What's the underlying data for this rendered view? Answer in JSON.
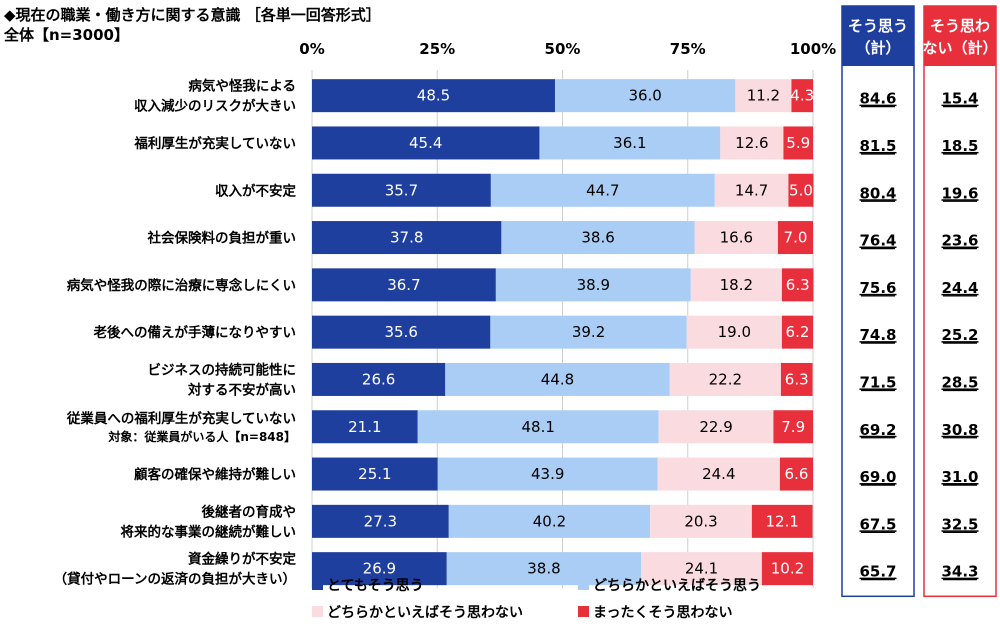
{
  "title_line1": "◆現在の職業・働き方に関する意識 ［各単一回答形式］",
  "title_line2": "全体【n=3000】",
  "summary_headers": [
    {
      "line1": "そう思う",
      "line2": "（計）",
      "color": "#1f3f9f"
    },
    {
      "line1": "そう思わ",
      "line2": "ない（計）",
      "color": "#e8303c"
    }
  ],
  "chart_data": {
    "type": "bar",
    "orientation": "horizontal",
    "stacked": true,
    "xlim": [
      0,
      100
    ],
    "xticks": [
      "0%",
      "25%",
      "50%",
      "75%",
      "100%"
    ],
    "series": [
      {
        "name": "とてもそう思う",
        "color": "#1f3f9f",
        "label_color": "#ffffff"
      },
      {
        "name": "どちらかといえばそう思う",
        "color": "#a9cdf5",
        "label_color": "#000000"
      },
      {
        "name": "どちらかといえばそう思わない",
        "color": "#fadbe0",
        "label_color": "#000000"
      },
      {
        "name": "まったくそう思わない",
        "color": "#e8303c",
        "label_color": "#ffffff"
      }
    ],
    "categories": [
      {
        "lines": [
          "病気や怪我による",
          "収入減少のリスクが大きい"
        ],
        "values": [
          48.5,
          36.0,
          11.2,
          4.3
        ],
        "agree_total": "84.6",
        "disagree_total": "15.4"
      },
      {
        "lines": [
          "福利厚生が充実していない"
        ],
        "values": [
          45.4,
          36.1,
          12.6,
          5.9
        ],
        "agree_total": "81.5",
        "disagree_total": "18.5"
      },
      {
        "lines": [
          "収入が不安定"
        ],
        "values": [
          35.7,
          44.7,
          14.7,
          5.0
        ],
        "agree_total": "80.4",
        "disagree_total": "19.6"
      },
      {
        "lines": [
          "社会保険料の負担が重い"
        ],
        "values": [
          37.8,
          38.6,
          16.6,
          7.0
        ],
        "agree_total": "76.4",
        "disagree_total": "23.6"
      },
      {
        "lines": [
          "病気や怪我の際に治療に専念しにくい"
        ],
        "values": [
          36.7,
          38.9,
          18.2,
          6.3
        ],
        "agree_total": "75.6",
        "disagree_total": "24.4"
      },
      {
        "lines": [
          "老後への備えが手薄になりやすい"
        ],
        "values": [
          35.6,
          39.2,
          19.0,
          6.2
        ],
        "agree_total": "74.8",
        "disagree_total": "25.2"
      },
      {
        "lines": [
          "ビジネスの持続可能性に",
          "対する不安が高い"
        ],
        "values": [
          26.6,
          44.8,
          22.2,
          6.3
        ],
        "agree_total": "71.5",
        "disagree_total": "28.5"
      },
      {
        "lines": [
          "従業員への福利厚生が充実していない"
        ],
        "note": "対象：従業員がいる人【n=848】",
        "values": [
          21.1,
          48.1,
          22.9,
          7.9
        ],
        "agree_total": "69.2",
        "disagree_total": "30.8"
      },
      {
        "lines": [
          "顧客の確保や維持が難しい"
        ],
        "values": [
          25.1,
          43.9,
          24.4,
          6.6
        ],
        "agree_total": "69.0",
        "disagree_total": "31.0"
      },
      {
        "lines": [
          "後継者の育成や",
          "将来的な事業の継続が難しい"
        ],
        "values": [
          27.3,
          40.2,
          20.3,
          12.1
        ],
        "agree_total": "67.5",
        "disagree_total": "32.5"
      },
      {
        "lines": [
          "資金繰りが不安定",
          "（貸付やローンの返済の負担が大きい）"
        ],
        "values": [
          26.9,
          38.8,
          24.1,
          10.2
        ],
        "agree_total": "65.7",
        "disagree_total": "34.3"
      }
    ]
  }
}
